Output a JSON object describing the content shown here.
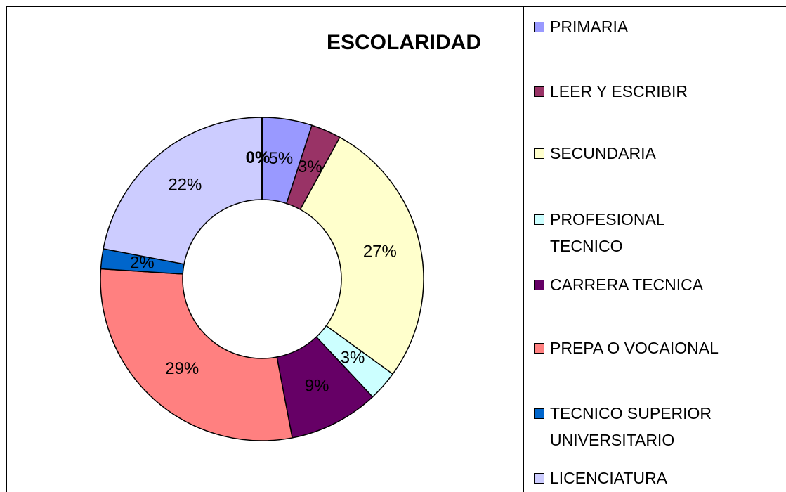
{
  "chart_data": {
    "type": "donut",
    "title": "ESCOLARIDAD",
    "categories": [
      "PRIMARIA",
      "LEER Y ESCRIBIR",
      "SECUNDARIA",
      "PROFESIONAL TECNICO",
      "CARRERA TECNICA",
      "PREPA O VOCAIONAL",
      "TECNICO SUPERIOR UNIVERSITARIO",
      "LICENCIATURA",
      null
    ],
    "values": [
      5,
      3,
      27,
      3,
      9,
      29,
      2,
      22,
      0
    ],
    "colors": [
      "#9999ff",
      "#993366",
      "#ffffcc",
      "#ccffff",
      "#660066",
      "#ff8080",
      "#0066cc",
      "#ccccff",
      "#000000"
    ]
  }
}
